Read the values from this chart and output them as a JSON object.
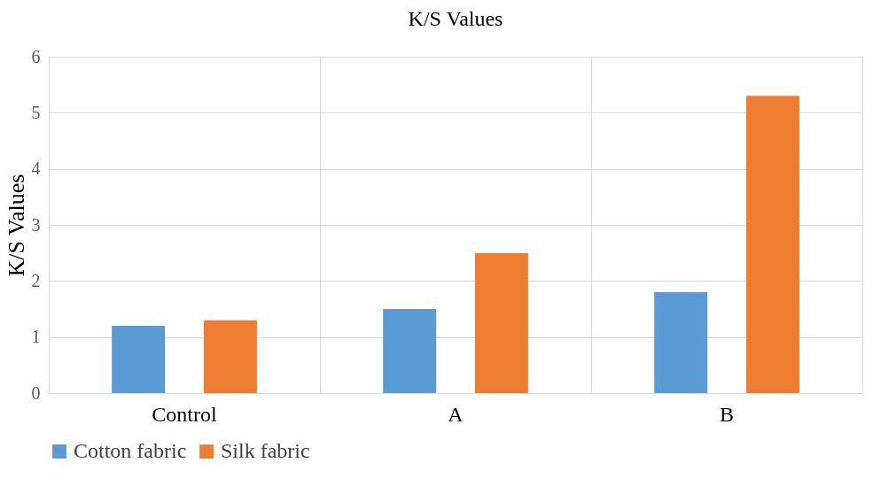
{
  "chart_data": {
    "type": "bar",
    "title": "K/S Values",
    "ylabel": "K/S Values",
    "categories": [
      "Control",
      "A",
      "B"
    ],
    "series": [
      {
        "name": "Cotton fabric",
        "color": "#5b9bd5",
        "values": [
          1.2,
          1.5,
          1.8
        ]
      },
      {
        "name": "Silk fabric",
        "color": "#ed7d31",
        "values": [
          1.3,
          2.5,
          5.3
        ]
      }
    ],
    "ylim": [
      0,
      6
    ],
    "yticks": [
      0,
      1,
      2,
      3,
      4,
      5,
      6
    ],
    "grid": true,
    "legend": "bottom"
  }
}
